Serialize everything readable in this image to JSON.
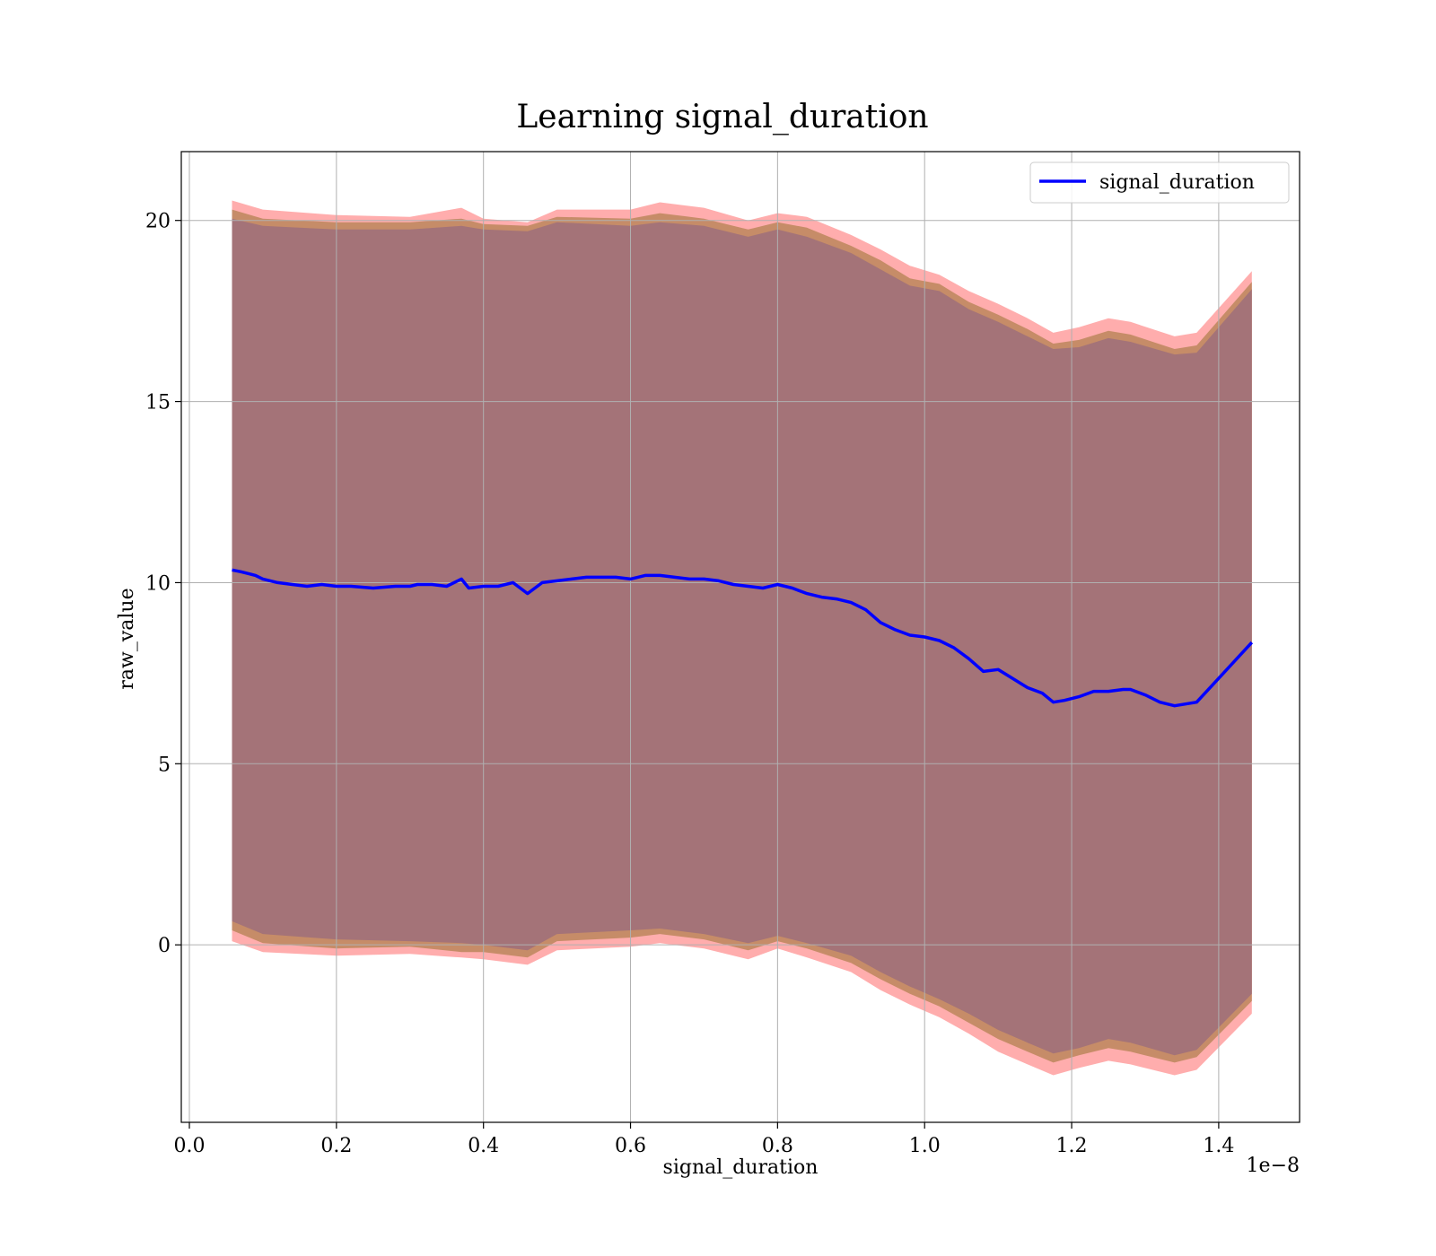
{
  "chart_data": {
    "type": "area",
    "title": "Learning signal_duration",
    "xlabel": "signal_duration",
    "ylabel": "raw_value",
    "x_offset_label": "1e−8",
    "xlim": [
      -0.011,
      1.51
    ],
    "ylim": [
      -4.9,
      21.9
    ],
    "xticks": [
      0.0,
      0.2,
      0.4,
      0.6,
      0.8,
      1.0,
      1.2,
      1.4
    ],
    "xtick_labels": [
      "0.0",
      "0.2",
      "0.4",
      "0.6",
      "0.8",
      "1.0",
      "1.2",
      "1.4"
    ],
    "yticks": [
      0,
      5,
      10,
      15,
      20
    ],
    "ytick_labels": [
      "0",
      "5",
      "10",
      "15",
      "20"
    ],
    "grid": true,
    "legend_position": "top-right",
    "colors": {
      "line": "#0000ff",
      "band_outer": "#ff9999",
      "band_middle": "#c08860",
      "band_inner": "#a0707a",
      "grid": "#b0b0b0"
    },
    "series": [
      {
        "name": "signal_duration",
        "x": [
          0.058,
          0.07,
          0.08,
          0.09,
          0.1,
          0.12,
          0.14,
          0.16,
          0.18,
          0.2,
          0.22,
          0.25,
          0.28,
          0.3,
          0.31,
          0.33,
          0.35,
          0.37,
          0.38,
          0.4,
          0.42,
          0.44,
          0.46,
          0.47,
          0.48,
          0.5,
          0.52,
          0.54,
          0.56,
          0.58,
          0.6,
          0.62,
          0.64,
          0.66,
          0.68,
          0.7,
          0.72,
          0.74,
          0.76,
          0.78,
          0.8,
          0.82,
          0.84,
          0.86,
          0.88,
          0.9,
          0.92,
          0.94,
          0.96,
          0.98,
          1.0,
          1.02,
          1.04,
          1.06,
          1.08,
          1.1,
          1.12,
          1.14,
          1.16,
          1.175,
          1.19,
          1.21,
          1.23,
          1.25,
          1.27,
          1.28,
          1.3,
          1.32,
          1.34,
          1.37,
          1.445
        ],
        "y": [
          10.35,
          10.3,
          10.25,
          10.2,
          10.1,
          10.0,
          9.95,
          9.9,
          9.95,
          9.9,
          9.9,
          9.85,
          9.9,
          9.9,
          9.95,
          9.95,
          9.9,
          10.1,
          9.85,
          9.9,
          9.9,
          10.0,
          9.7,
          9.85,
          10.0,
          10.05,
          10.1,
          10.15,
          10.15,
          10.15,
          10.1,
          10.2,
          10.2,
          10.15,
          10.1,
          10.1,
          10.05,
          9.95,
          9.9,
          9.85,
          9.95,
          9.85,
          9.7,
          9.6,
          9.55,
          9.45,
          9.25,
          8.9,
          8.7,
          8.55,
          8.5,
          8.4,
          8.2,
          7.9,
          7.55,
          7.6,
          7.35,
          7.1,
          6.95,
          6.7,
          6.75,
          6.85,
          7.0,
          7.0,
          7.05,
          7.05,
          6.9,
          6.7,
          6.6,
          6.7,
          8.35
        ]
      }
    ],
    "bands": [
      {
        "x": [
          0.058,
          0.1,
          0.2,
          0.3,
          0.37,
          0.4,
          0.46,
          0.5,
          0.6,
          0.64,
          0.7,
          0.76,
          0.8,
          0.84,
          0.9,
          0.94,
          0.98,
          1.02,
          1.06,
          1.1,
          1.14,
          1.175,
          1.21,
          1.25,
          1.28,
          1.34,
          1.37,
          1.445
        ],
        "upper": [
          20.55,
          20.3,
          20.15,
          20.1,
          20.35,
          20.05,
          19.95,
          20.3,
          20.3,
          20.5,
          20.35,
          20.0,
          20.2,
          20.1,
          19.6,
          19.2,
          18.75,
          18.5,
          18.05,
          17.7,
          17.3,
          16.9,
          17.05,
          17.3,
          17.2,
          16.8,
          16.9,
          18.6
        ],
        "lower": [
          0.1,
          -0.2,
          -0.3,
          -0.25,
          -0.35,
          -0.4,
          -0.55,
          -0.15,
          -0.05,
          0.05,
          -0.1,
          -0.4,
          -0.1,
          -0.35,
          -0.75,
          -1.25,
          -1.65,
          -2.0,
          -2.45,
          -2.95,
          -3.3,
          -3.6,
          -3.4,
          -3.2,
          -3.3,
          -3.6,
          -3.45,
          -1.9
        ]
      },
      {
        "x": [
          0.058,
          0.1,
          0.2,
          0.3,
          0.37,
          0.4,
          0.46,
          0.5,
          0.6,
          0.64,
          0.7,
          0.76,
          0.8,
          0.84,
          0.9,
          0.94,
          0.98,
          1.02,
          1.06,
          1.1,
          1.14,
          1.175,
          1.21,
          1.25,
          1.28,
          1.34,
          1.37,
          1.445
        ],
        "upper": [
          20.3,
          20.05,
          19.95,
          19.95,
          20.05,
          19.9,
          19.85,
          20.1,
          20.05,
          20.2,
          20.05,
          19.75,
          19.95,
          19.8,
          19.3,
          18.9,
          18.4,
          18.25,
          17.75,
          17.4,
          17.0,
          16.6,
          16.7,
          16.95,
          16.85,
          16.45,
          16.55,
          18.3
        ],
        "lower": [
          0.4,
          0.05,
          -0.1,
          -0.05,
          -0.2,
          -0.2,
          -0.35,
          0.1,
          0.2,
          0.3,
          0.15,
          -0.15,
          0.1,
          -0.1,
          -0.5,
          -0.95,
          -1.35,
          -1.7,
          -2.15,
          -2.6,
          -2.95,
          -3.25,
          -3.05,
          -2.85,
          -2.95,
          -3.25,
          -3.1,
          -1.55
        ]
      },
      {
        "x": [
          0.058,
          0.1,
          0.2,
          0.3,
          0.37,
          0.4,
          0.46,
          0.5,
          0.6,
          0.64,
          0.7,
          0.76,
          0.8,
          0.84,
          0.9,
          0.94,
          0.98,
          1.02,
          1.06,
          1.1,
          1.14,
          1.175,
          1.21,
          1.25,
          1.28,
          1.34,
          1.37,
          1.445
        ],
        "upper": [
          20.05,
          19.85,
          19.75,
          19.75,
          19.85,
          19.75,
          19.7,
          19.95,
          19.85,
          19.95,
          19.85,
          19.55,
          19.75,
          19.55,
          19.1,
          18.65,
          18.2,
          18.05,
          17.55,
          17.2,
          16.8,
          16.45,
          16.5,
          16.75,
          16.65,
          16.3,
          16.35,
          18.1
        ],
        "lower": [
          0.65,
          0.3,
          0.15,
          0.1,
          0.05,
          0.0,
          -0.15,
          0.3,
          0.4,
          0.45,
          0.3,
          0.05,
          0.25,
          0.05,
          -0.3,
          -0.75,
          -1.15,
          -1.5,
          -1.9,
          -2.35,
          -2.7,
          -3.0,
          -2.85,
          -2.6,
          -2.7,
          -3.05,
          -2.9,
          -1.35
        ]
      }
    ]
  }
}
